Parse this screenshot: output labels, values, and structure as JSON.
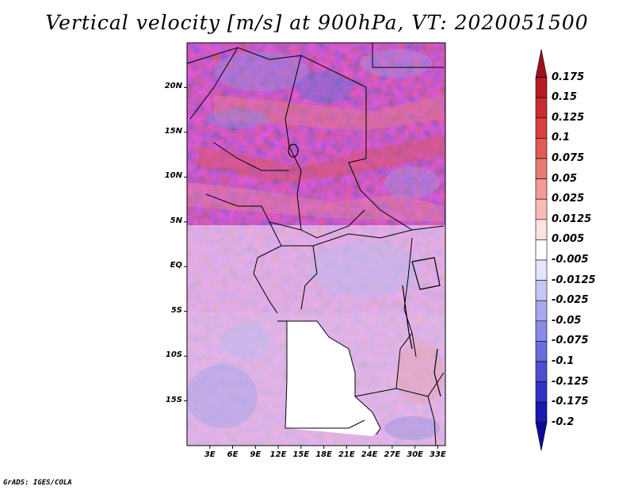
{
  "title": "Vertical velocity [m/s] at 900hPa, VT: 2020051500",
  "credit": "GrADS: IGES/COLA",
  "map": {
    "region": "Central Africa",
    "lon_range": [
      0,
      34
    ],
    "lat_range": [
      -20,
      25
    ],
    "lat_labels": [
      "20N",
      "15N",
      "10N",
      "5N",
      "EQ",
      "5S",
      "10S",
      "15S"
    ],
    "lon_labels": [
      "3E",
      "6E",
      "9E",
      "12E",
      "15E",
      "18E",
      "21E",
      "24E",
      "27E",
      "30E",
      "33E"
    ]
  },
  "colorbar": {
    "labels": [
      "0.175",
      "0.15",
      "0.125",
      "0.1",
      "0.075",
      "0.05",
      "0.025",
      "0.0125",
      "0.005",
      "-0.005",
      "-0.0125",
      "-0.025",
      "-0.05",
      "-0.075",
      "-0.1",
      "-0.125",
      "-0.175",
      "-0.2"
    ],
    "colors": [
      "#a0101c",
      "#b61c24",
      "#c82c30",
      "#d84040",
      "#e25a58",
      "#ea7a76",
      "#f29a96",
      "#f8bcb8",
      "#fbe2df",
      "#ffffff",
      "#e4e4fb",
      "#c6c6f4",
      "#a8a8ee",
      "#8a8ae6",
      "#6c6cde",
      "#4e4ed2",
      "#3232c4",
      "#1a1ab0",
      "#0a0a96"
    ]
  }
}
